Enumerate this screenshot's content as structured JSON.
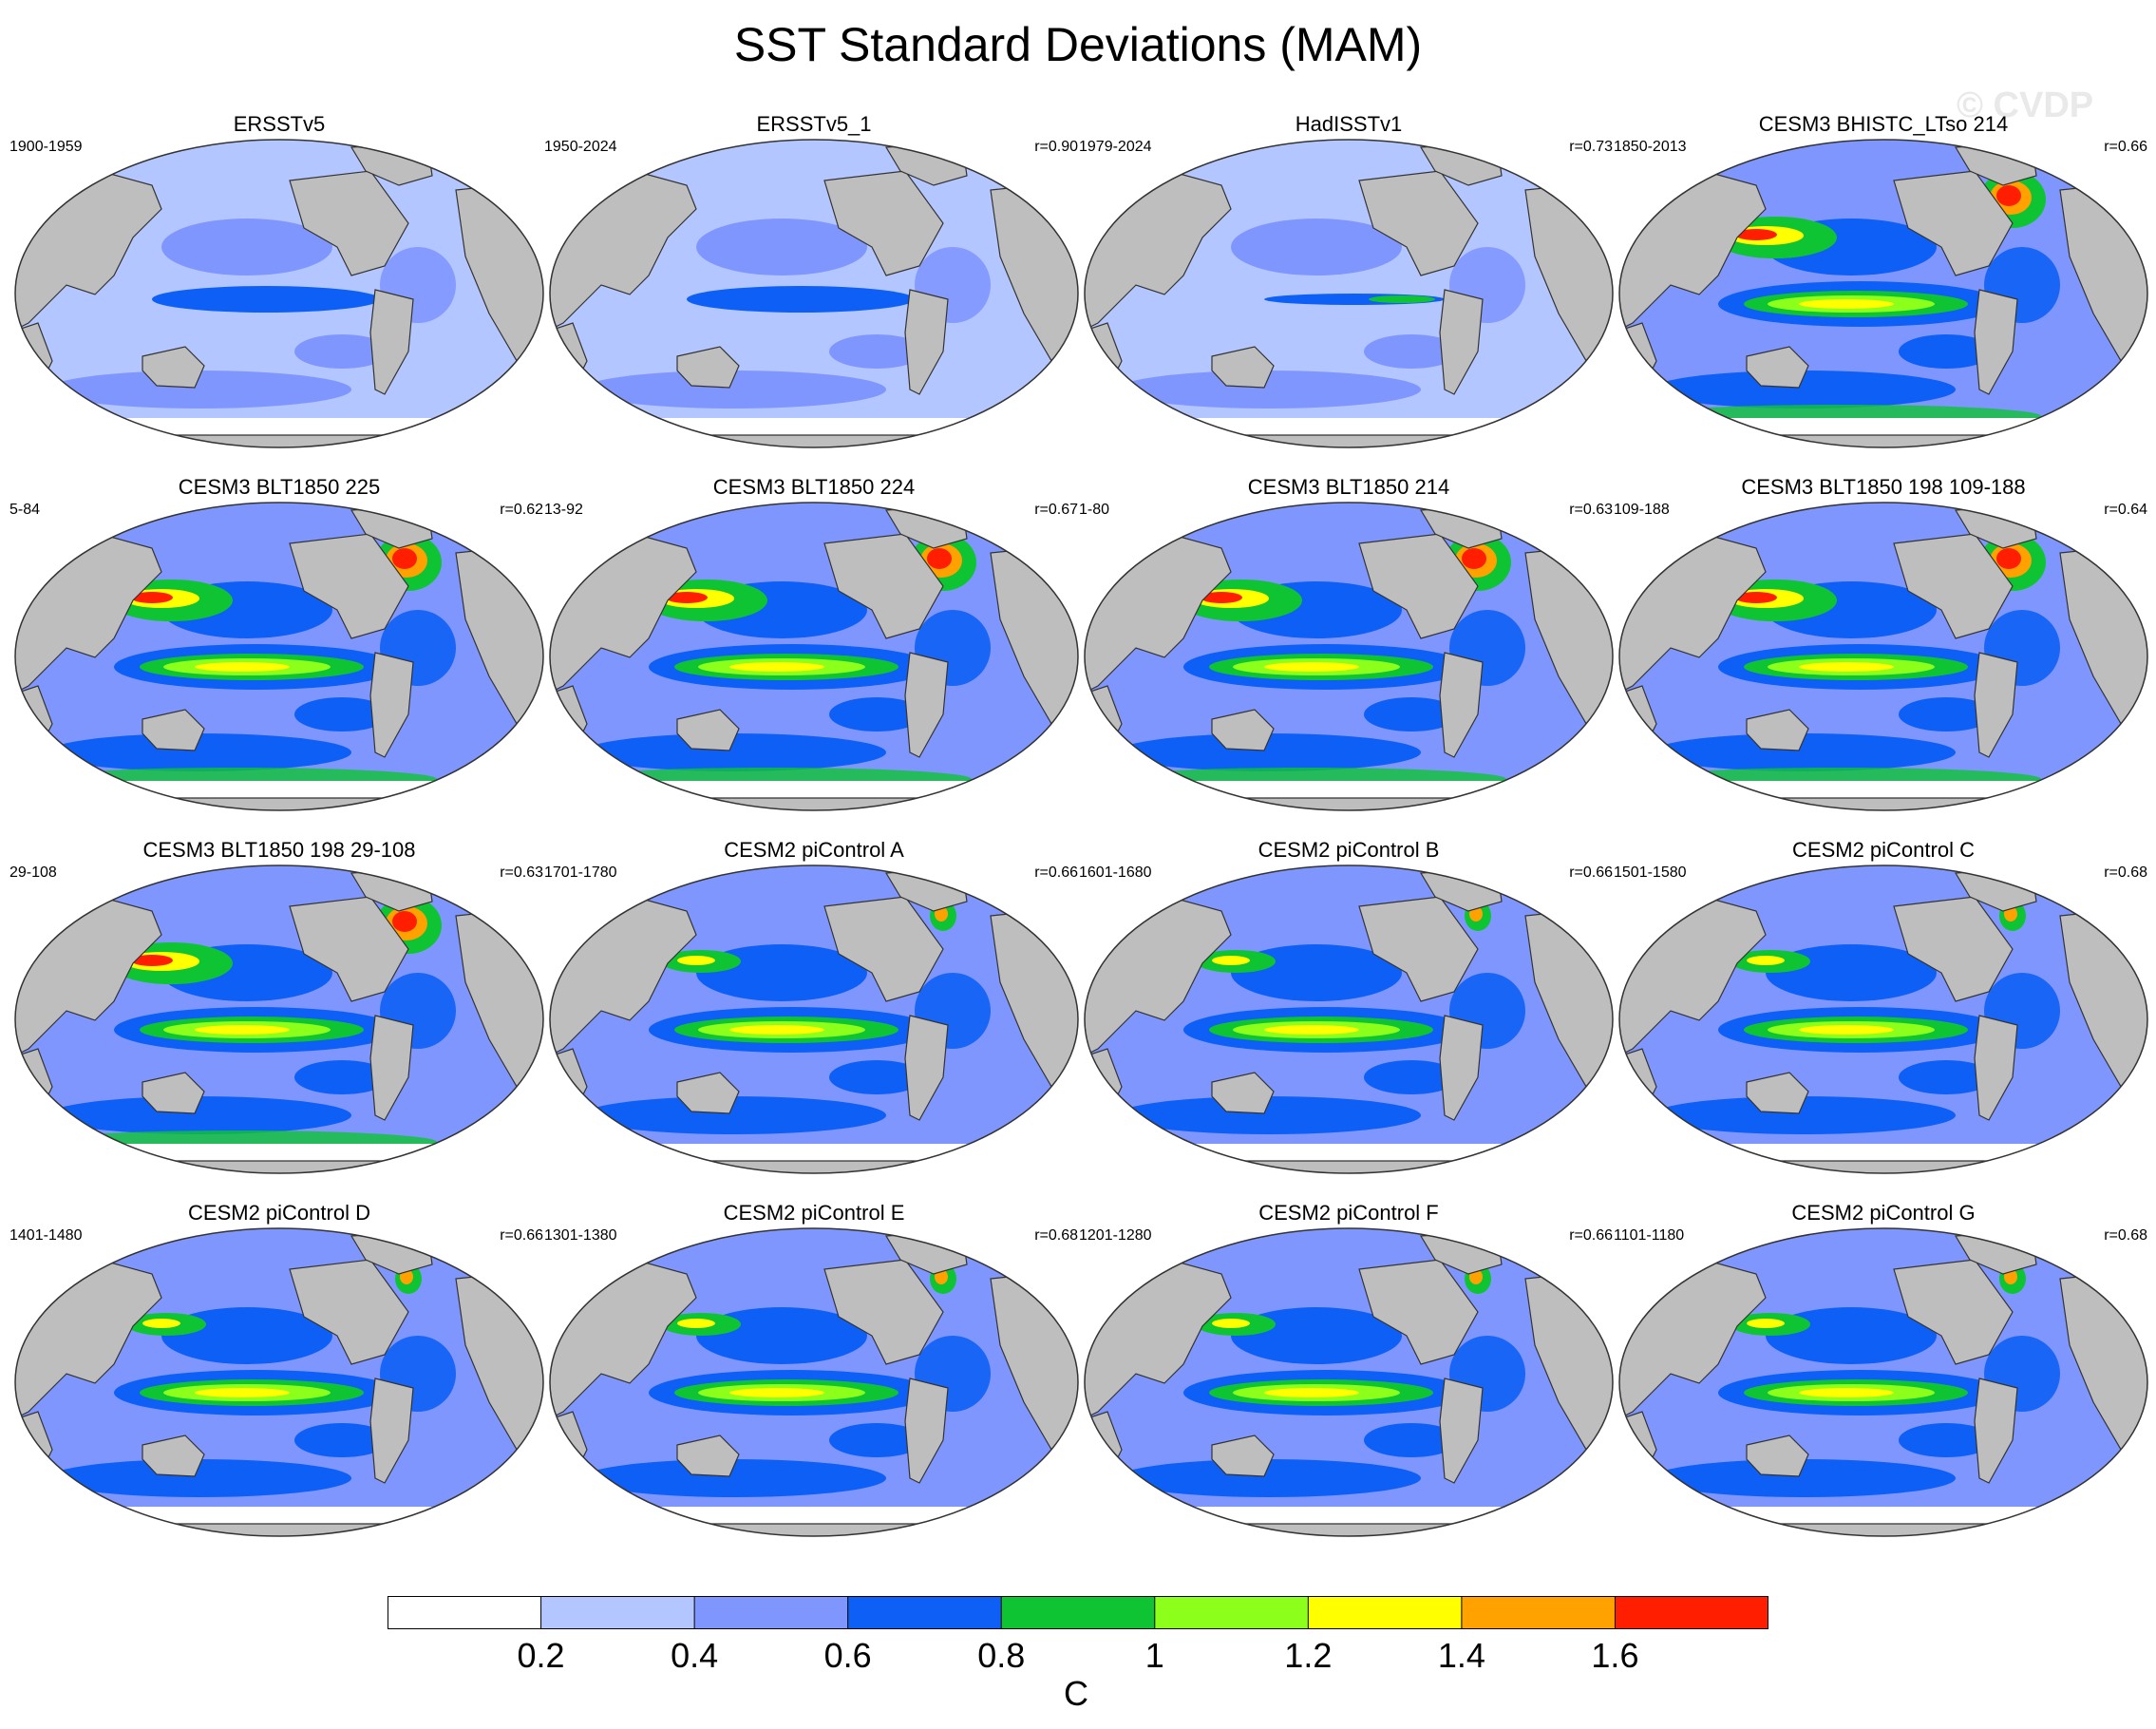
{
  "title": "SST Standard Deviations (MAM)",
  "watermark": "© CVDP",
  "panels": [
    {
      "title": "ERSSTv5",
      "years": "1900-1959",
      "r": ""
    },
    {
      "title": "ERSSTv5_1",
      "years": "1950-2024",
      "r": "r=0.90"
    },
    {
      "title": "HadISSTv1",
      "years": "1979-2024",
      "r": "r=0.73"
    },
    {
      "title": "CESM3 BHISTC_LTso 214",
      "years": "1850-2013",
      "r": "r=0.66"
    },
    {
      "title": "CESM3 BLT1850 225",
      "years": "5-84",
      "r": "r=0.62"
    },
    {
      "title": "CESM3 BLT1850 224",
      "years": "13-92",
      "r": "r=0.67"
    },
    {
      "title": "CESM3 BLT1850 214",
      "years": "1-80",
      "r": "r=0.63"
    },
    {
      "title": "CESM3 BLT1850 198 109-188",
      "years": "109-188",
      "r": "r=0.64"
    },
    {
      "title": "CESM3 BLT1850 198 29-108",
      "years": "29-108",
      "r": "r=0.63"
    },
    {
      "title": "CESM2 piControl A",
      "years": "1701-1780",
      "r": "r=0.66"
    },
    {
      "title": "CESM2 piControl B",
      "years": "1601-1680",
      "r": "r=0.66"
    },
    {
      "title": "CESM2 piControl C",
      "years": "1501-1580",
      "r": "r=0.68"
    },
    {
      "title": "CESM2 piControl D",
      "years": "1401-1480",
      "r": "r=0.66"
    },
    {
      "title": "CESM2 piControl E",
      "years": "1301-1380",
      "r": "r=0.68"
    },
    {
      "title": "CESM2 piControl F",
      "years": "1201-1280",
      "r": "r=0.66"
    },
    {
      "title": "CESM2 piControl G",
      "years": "1101-1180",
      "r": "r=0.68"
    }
  ],
  "colorbar": {
    "labels": [
      "0.2",
      "0.4",
      "0.6",
      "0.8",
      "1",
      "1.2",
      "1.4",
      "1.6"
    ],
    "unit": "C",
    "colors": [
      "#ffffff",
      "#b4c6ff",
      "#7f96ff",
      "#0e5ff5",
      "#0fc433",
      "#8cff1a",
      "#ffff00",
      "#ffa200",
      "#ff1e00"
    ]
  },
  "land_color": "#bebebe"
}
